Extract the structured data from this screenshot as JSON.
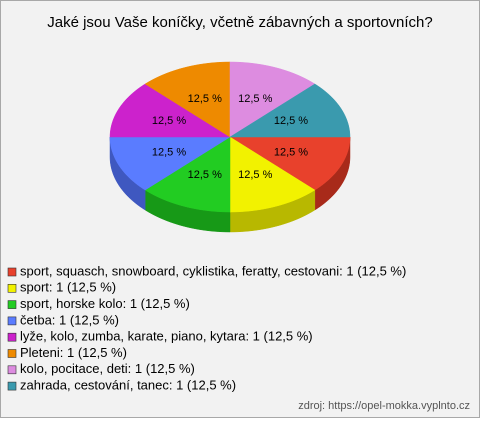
{
  "chart_data": {
    "type": "pie3d",
    "title": "Jaké jsou Vaše koníčky, včetně zábavných a sportovních?",
    "categories": [
      "sport, squasch, snowboard, cyklistika, feratty, cestovani: 1 (12,5 %)",
      "sport: 1 (12,5 %)",
      "sport, horske kolo: 1 (12,5 %)",
      "četba: 1 (12,5 %)",
      "lyže, kolo, zumba, karate, piano, kytara: 1 (12,5 %)",
      "Pleteni: 1 (12,5 %)",
      "kolo, pocitace, deti: 1 (12,5 %)",
      "zahrada, cestování, tanec: 1 (12,5 %)"
    ],
    "values": [
      12.5,
      12.5,
      12.5,
      12.5,
      12.5,
      12.5,
      12.5,
      12.5
    ],
    "value_labels": [
      "12,5 %",
      "12,5 %",
      "12,5 %",
      "12,5 %",
      "12,5 %",
      "12,5 %",
      "12,5 %",
      "12,5 %"
    ],
    "colors": [
      "#e8412c",
      "#f2f200",
      "#22cc22",
      "#5a7cff",
      "#cc22cc",
      "#ee8a00",
      "#dd8ce0",
      "#3a9aae"
    ],
    "side_colors": [
      "#a82a1a",
      "#b8b800",
      "#179917",
      "#3f58c0",
      "#961896",
      "#b06600",
      "#a868aa",
      "#276f80"
    ],
    "source": "zdroj: https://opel-mokka.vyplnto.cz"
  }
}
